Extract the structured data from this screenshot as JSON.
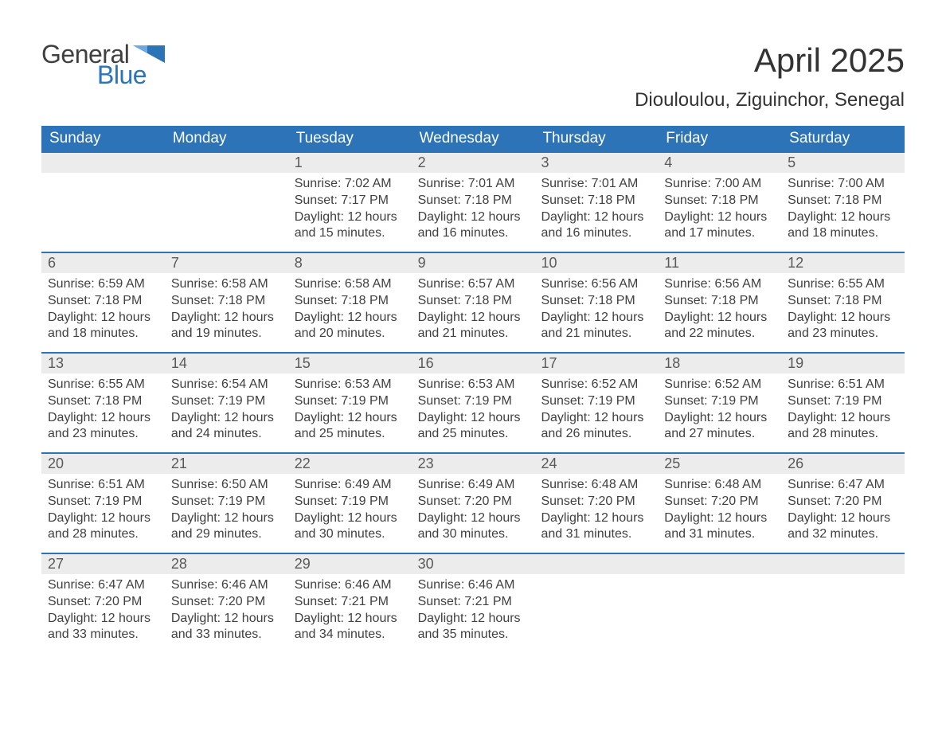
{
  "logo": {
    "word1": "General",
    "word2": "Blue"
  },
  "colors": {
    "header_bg": "#2c73b7",
    "header_text": "#ffffff",
    "daynum_bg": "#ececec",
    "rule": "#2c73b7",
    "text": "#404040",
    "title": "#333333"
  },
  "fonts": {
    "title_size": 42,
    "location_size": 24,
    "header_size": 19,
    "daynum_size": 18,
    "body_size": 16,
    "logo_size": 32
  },
  "title": "April 2025",
  "location": "Diouloulou, Ziguinchor, Senegal",
  "day_headers": [
    "Sunday",
    "Monday",
    "Tuesday",
    "Wednesday",
    "Thursday",
    "Friday",
    "Saturday"
  ],
  "weeks": [
    [
      {},
      {},
      {
        "n": "1",
        "sunrise": "7:02 AM",
        "sunset": "7:17 PM",
        "daylight": "12 hours and 15 minutes."
      },
      {
        "n": "2",
        "sunrise": "7:01 AM",
        "sunset": "7:18 PM",
        "daylight": "12 hours and 16 minutes."
      },
      {
        "n": "3",
        "sunrise": "7:01 AM",
        "sunset": "7:18 PM",
        "daylight": "12 hours and 16 minutes."
      },
      {
        "n": "4",
        "sunrise": "7:00 AM",
        "sunset": "7:18 PM",
        "daylight": "12 hours and 17 minutes."
      },
      {
        "n": "5",
        "sunrise": "7:00 AM",
        "sunset": "7:18 PM",
        "daylight": "12 hours and 18 minutes."
      }
    ],
    [
      {
        "n": "6",
        "sunrise": "6:59 AM",
        "sunset": "7:18 PM",
        "daylight": "12 hours and 18 minutes."
      },
      {
        "n": "7",
        "sunrise": "6:58 AM",
        "sunset": "7:18 PM",
        "daylight": "12 hours and 19 minutes."
      },
      {
        "n": "8",
        "sunrise": "6:58 AM",
        "sunset": "7:18 PM",
        "daylight": "12 hours and 20 minutes."
      },
      {
        "n": "9",
        "sunrise": "6:57 AM",
        "sunset": "7:18 PM",
        "daylight": "12 hours and 21 minutes."
      },
      {
        "n": "10",
        "sunrise": "6:56 AM",
        "sunset": "7:18 PM",
        "daylight": "12 hours and 21 minutes."
      },
      {
        "n": "11",
        "sunrise": "6:56 AM",
        "sunset": "7:18 PM",
        "daylight": "12 hours and 22 minutes."
      },
      {
        "n": "12",
        "sunrise": "6:55 AM",
        "sunset": "7:18 PM",
        "daylight": "12 hours and 23 minutes."
      }
    ],
    [
      {
        "n": "13",
        "sunrise": "6:55 AM",
        "sunset": "7:18 PM",
        "daylight": "12 hours and 23 minutes."
      },
      {
        "n": "14",
        "sunrise": "6:54 AM",
        "sunset": "7:19 PM",
        "daylight": "12 hours and 24 minutes."
      },
      {
        "n": "15",
        "sunrise": "6:53 AM",
        "sunset": "7:19 PM",
        "daylight": "12 hours and 25 minutes."
      },
      {
        "n": "16",
        "sunrise": "6:53 AM",
        "sunset": "7:19 PM",
        "daylight": "12 hours and 25 minutes."
      },
      {
        "n": "17",
        "sunrise": "6:52 AM",
        "sunset": "7:19 PM",
        "daylight": "12 hours and 26 minutes."
      },
      {
        "n": "18",
        "sunrise": "6:52 AM",
        "sunset": "7:19 PM",
        "daylight": "12 hours and 27 minutes."
      },
      {
        "n": "19",
        "sunrise": "6:51 AM",
        "sunset": "7:19 PM",
        "daylight": "12 hours and 28 minutes."
      }
    ],
    [
      {
        "n": "20",
        "sunrise": "6:51 AM",
        "sunset": "7:19 PM",
        "daylight": "12 hours and 28 minutes."
      },
      {
        "n": "21",
        "sunrise": "6:50 AM",
        "sunset": "7:19 PM",
        "daylight": "12 hours and 29 minutes."
      },
      {
        "n": "22",
        "sunrise": "6:49 AM",
        "sunset": "7:19 PM",
        "daylight": "12 hours and 30 minutes."
      },
      {
        "n": "23",
        "sunrise": "6:49 AM",
        "sunset": "7:20 PM",
        "daylight": "12 hours and 30 minutes."
      },
      {
        "n": "24",
        "sunrise": "6:48 AM",
        "sunset": "7:20 PM",
        "daylight": "12 hours and 31 minutes."
      },
      {
        "n": "25",
        "sunrise": "6:48 AM",
        "sunset": "7:20 PM",
        "daylight": "12 hours and 31 minutes."
      },
      {
        "n": "26",
        "sunrise": "6:47 AM",
        "sunset": "7:20 PM",
        "daylight": "12 hours and 32 minutes."
      }
    ],
    [
      {
        "n": "27",
        "sunrise": "6:47 AM",
        "sunset": "7:20 PM",
        "daylight": "12 hours and 33 minutes."
      },
      {
        "n": "28",
        "sunrise": "6:46 AM",
        "sunset": "7:20 PM",
        "daylight": "12 hours and 33 minutes."
      },
      {
        "n": "29",
        "sunrise": "6:46 AM",
        "sunset": "7:21 PM",
        "daylight": "12 hours and 34 minutes."
      },
      {
        "n": "30",
        "sunrise": "6:46 AM",
        "sunset": "7:21 PM",
        "daylight": "12 hours and 35 minutes."
      },
      {},
      {},
      {}
    ]
  ],
  "labels": {
    "sunrise_prefix": "Sunrise: ",
    "sunset_prefix": "Sunset: ",
    "daylight_prefix": "Daylight: "
  }
}
